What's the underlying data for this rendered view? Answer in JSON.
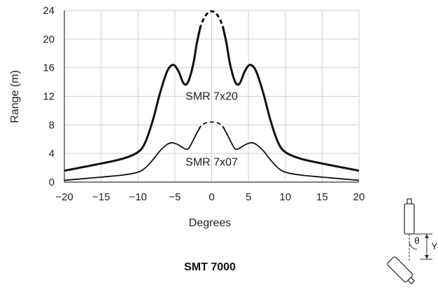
{
  "figure_title": "SMT 7000",
  "diagram": {
    "angle_label": "θ",
    "height_label": "Y"
  },
  "chart_data": {
    "type": "line",
    "title": "",
    "xlabel": "Degrees",
    "ylabel": "Range (m)",
    "xlim": [
      -20,
      20
    ],
    "ylim": [
      0,
      24
    ],
    "xticks": [
      -20,
      -15,
      -10,
      -5,
      0,
      5,
      10,
      15,
      20
    ],
    "xtick_labels": [
      "−20",
      "−15",
      "−10",
      "−5",
      "0",
      "5",
      "10",
      "15",
      "20"
    ],
    "yticks": [
      0,
      4,
      8,
      12,
      16,
      20,
      24
    ],
    "ytick_labels": [
      "0",
      "4",
      "8",
      "12",
      "16",
      "20",
      "24"
    ],
    "grid": true,
    "series": [
      {
        "name": "SMR 7x20",
        "line_weight": "thick",
        "label_at": [
          0,
          11.5
        ],
        "points": [
          [
            -20,
            1.6
          ],
          [
            -15,
            2.6
          ],
          [
            -12,
            3.3
          ],
          [
            -10,
            4.2
          ],
          [
            -9,
            5.6
          ],
          [
            -8,
            8.6
          ],
          [
            -7,
            12.5
          ],
          [
            -6,
            15.6
          ],
          [
            -5.2,
            16.4
          ],
          [
            -4.5,
            15.5
          ],
          [
            -3.8,
            13.8
          ],
          [
            -3.2,
            14.0
          ],
          [
            -2.5,
            16.5
          ],
          [
            -2,
            19.5
          ],
          [
            -1.5,
            21.8
          ],
          [
            -0.75,
            23.4
          ],
          [
            0,
            23.9
          ],
          [
            0.75,
            23.4
          ],
          [
            1.5,
            21.8
          ],
          [
            2,
            19.5
          ],
          [
            2.5,
            16.5
          ],
          [
            3.2,
            14.0
          ],
          [
            3.8,
            13.8
          ],
          [
            4.5,
            15.5
          ],
          [
            5.2,
            16.4
          ],
          [
            6,
            15.6
          ],
          [
            7,
            12.5
          ],
          [
            8,
            8.6
          ],
          [
            9,
            5.6
          ],
          [
            10,
            4.2
          ],
          [
            12,
            3.3
          ],
          [
            15,
            2.6
          ],
          [
            20,
            1.6
          ]
        ],
        "dashed_x_range": [
          -1.8,
          1.8
        ]
      },
      {
        "name": "SMR 7x07",
        "line_weight": "thin",
        "label_at": [
          0,
          2.3
        ],
        "points": [
          [
            -20,
            0.25
          ],
          [
            -15,
            0.7
          ],
          [
            -12,
            1.0
          ],
          [
            -10,
            1.4
          ],
          [
            -9,
            2.0
          ],
          [
            -8,
            3.1
          ],
          [
            -7,
            4.4
          ],
          [
            -6,
            5.3
          ],
          [
            -5.3,
            5.5
          ],
          [
            -4.5,
            5.2
          ],
          [
            -3.5,
            4.6
          ],
          [
            -3,
            4.9
          ],
          [
            -2.2,
            6.5
          ],
          [
            -1.5,
            7.8
          ],
          [
            -0.75,
            8.3
          ],
          [
            0,
            8.4
          ],
          [
            0.75,
            8.3
          ],
          [
            1.5,
            7.8
          ],
          [
            2.2,
            6.5
          ],
          [
            3,
            4.9
          ],
          [
            3.5,
            4.6
          ],
          [
            4.5,
            5.2
          ],
          [
            5.3,
            5.5
          ],
          [
            6,
            5.3
          ],
          [
            7,
            4.4
          ],
          [
            8,
            3.1
          ],
          [
            9,
            2.0
          ],
          [
            10,
            1.4
          ],
          [
            12,
            1.0
          ],
          [
            15,
            0.7
          ],
          [
            20,
            0.25
          ]
        ],
        "dashed_x_range": [
          -1.8,
          1.8
        ]
      }
    ]
  }
}
